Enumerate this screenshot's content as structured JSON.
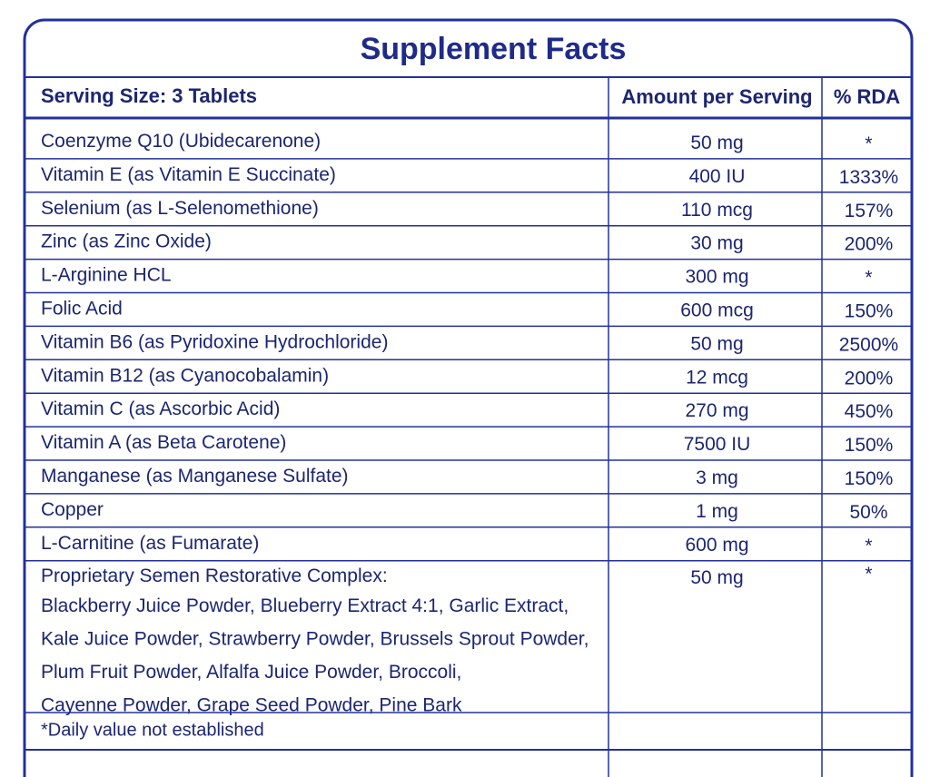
{
  "title": "Supplement Facts",
  "table": {
    "header": [
      "Serving Size: 3 Tablets",
      "Amount per Serving",
      "% RDA"
    ],
    "rows": [
      [
        "Coenzyme Q10 (Ubidecarenone)",
        "50 mg",
        "*"
      ],
      [
        "Vitamin E (as Vitamin E Succinate)",
        "400 IU",
        "1333%"
      ],
      [
        "Selenium (as L-Selenomethione)",
        "110 mcg",
        "157%"
      ],
      [
        "Zinc (as Zinc Oxide)",
        "30 mg",
        "200%"
      ],
      [
        "L-Arginine HCL",
        "300 mg",
        "*"
      ],
      [
        "Folic Acid",
        "600 mcg",
        "150%"
      ],
      [
        "Vitamin B6 (as Pyridoxine Hydrochloride)",
        "50 mg",
        "2500%"
      ],
      [
        "Vitamin B12 (as Cyanocobalamin)",
        "12 mcg",
        "200%"
      ],
      [
        "Vitamin C (as Ascorbic Acid)",
        "270 mg",
        "450%"
      ],
      [
        "Vitamin A (as Beta Carotene)",
        "7500 IU",
        "150%"
      ],
      [
        "Manganese (as Manganese Sulfate)",
        "3 mg",
        "150%"
      ],
      [
        "Copper",
        "1 mg",
        "50%"
      ],
      [
        "L-Carnitine (as Fumarate)",
        "600 mg",
        "*"
      ]
    ],
    "complex": {
      "name": "Proprietary Semen Restorative Complex:",
      "amount": "50 mg",
      "rda": "*",
      "ingredients": [
        "Blackberry Juice Powder, Blueberry Extract 4:1, Garlic Extract,",
        "Kale Juice Powder, Strawberry Powder, Brussels Sprout Powder,",
        "Plum Fruit Powder, Alfalfa Juice Powder, Broccoli,",
        "Cayenne Powder, Grape Seed Powder, Pine Bark"
      ]
    },
    "footnote": "*Daily value not established"
  }
}
